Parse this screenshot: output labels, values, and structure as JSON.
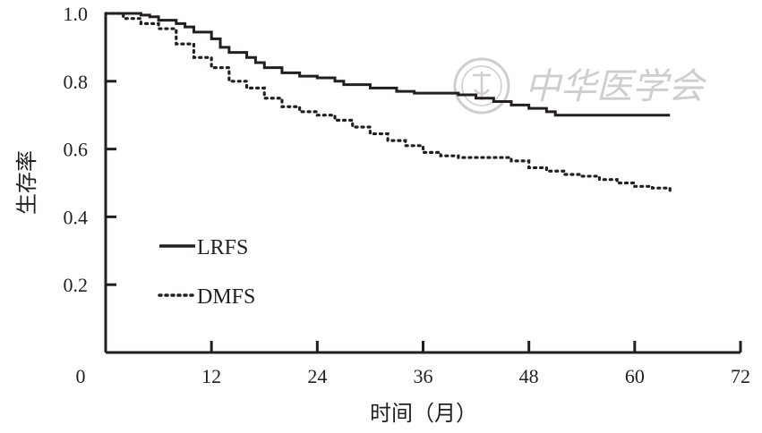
{
  "chart_data": {
    "type": "line",
    "xlabel": "时间（月）",
    "ylabel": "生存率",
    "xlim": [
      0,
      72
    ],
    "ylim": [
      0,
      1.0
    ],
    "x_ticks": [
      0,
      12,
      24,
      36,
      48,
      60,
      72
    ],
    "x_tick_labels": [
      "0",
      "12",
      "24",
      "36",
      "48",
      "60",
      "72"
    ],
    "y_ticks": [
      0.2,
      0.4,
      0.6,
      0.8,
      1.0
    ],
    "y_tick_labels": [
      "0.2",
      "0.4",
      "0.6",
      "0.8",
      "1.0"
    ],
    "grid": false,
    "legend_position": "left-middle",
    "series": [
      {
        "name": "LRFS",
        "style": "solid",
        "color": "#231f20",
        "x": [
          0,
          3,
          4,
          5,
          6,
          8,
          9,
          10,
          12,
          13,
          14,
          16,
          17,
          18,
          20,
          22,
          24,
          26,
          27,
          30,
          33,
          35,
          40,
          42,
          44,
          46,
          48,
          50,
          51,
          64
        ],
        "y": [
          1.0,
          1.0,
          0.995,
          0.99,
          0.98,
          0.97,
          0.96,
          0.945,
          0.925,
          0.9,
          0.885,
          0.87,
          0.855,
          0.84,
          0.825,
          0.815,
          0.81,
          0.8,
          0.79,
          0.78,
          0.77,
          0.765,
          0.76,
          0.75,
          0.74,
          0.73,
          0.72,
          0.71,
          0.7,
          0.7
        ]
      },
      {
        "name": "DMFS",
        "style": "dotted",
        "color": "#231f20",
        "x": [
          0,
          2,
          4,
          6,
          8,
          10,
          12,
          14,
          16,
          18,
          20,
          22,
          24,
          26,
          28,
          30,
          32,
          34,
          36,
          38,
          40,
          42,
          44,
          46,
          48,
          50,
          52,
          54,
          56,
          58,
          60,
          62,
          64
        ],
        "y": [
          1.0,
          0.985,
          0.97,
          0.955,
          0.91,
          0.87,
          0.84,
          0.8,
          0.78,
          0.75,
          0.725,
          0.71,
          0.7,
          0.685,
          0.665,
          0.645,
          0.625,
          0.61,
          0.59,
          0.58,
          0.575,
          0.575,
          0.575,
          0.565,
          0.545,
          0.535,
          0.525,
          0.52,
          0.51,
          0.5,
          0.49,
          0.485,
          0.47
        ]
      }
    ]
  },
  "watermark": {
    "text": "中华医学会"
  }
}
